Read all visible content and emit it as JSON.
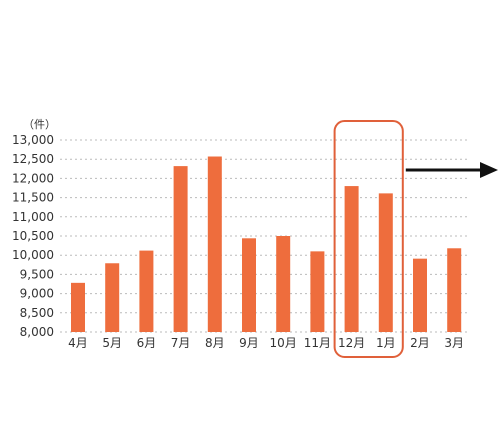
{
  "chart_data": {
    "type": "bar",
    "unit_label": "（件）",
    "categories": [
      "4月",
      "5月",
      "6月",
      "7月",
      "8月",
      "9月",
      "10月",
      "11月",
      "12月",
      "1月",
      "2月",
      "3月"
    ],
    "values": [
      9280,
      9790,
      10120,
      12320,
      12570,
      10440,
      10500,
      10100,
      11800,
      11610,
      9910,
      10180
    ],
    "ylim": [
      8000,
      13000
    ],
    "yticks": [
      8000,
      8500,
      9000,
      9500,
      10000,
      10500,
      11000,
      11500,
      12000,
      12500,
      13000
    ],
    "ytick_labels": [
      "8,000",
      "8,500",
      "9,000",
      "9,500",
      "10,000",
      "10,500",
      "11,000",
      "11,500",
      "12,000",
      "12,500",
      "13,000"
    ],
    "grid": true,
    "highlighted_categories": [
      "12月",
      "1月"
    ]
  },
  "colors": {
    "bar": "#ee6d3d",
    "highlight_outline": "#e0603a",
    "grid": "#bbbbbb",
    "arrow": "#111111"
  }
}
